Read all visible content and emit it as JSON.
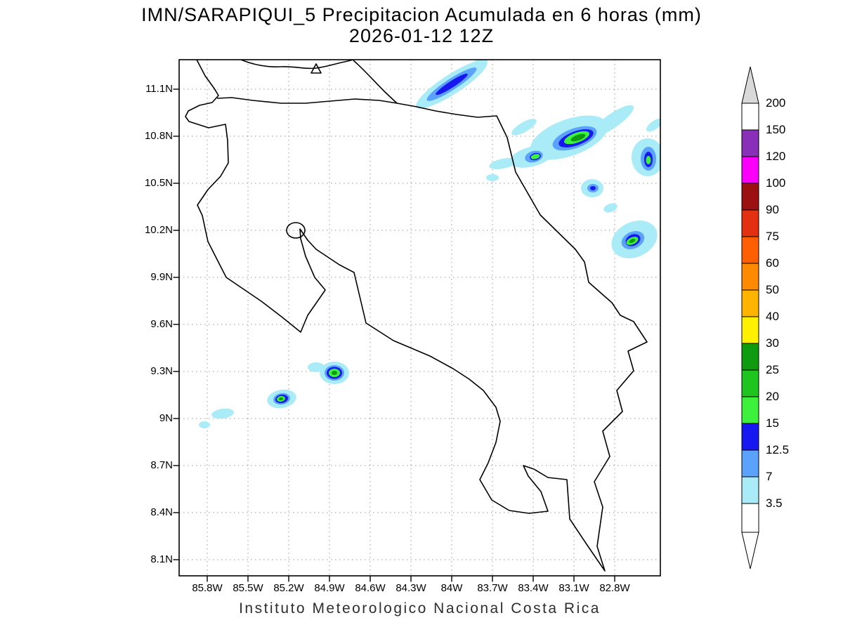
{
  "title": {
    "line1": "IMN/SARAPIQUI_5 Precipitacion Acumulada en 6 horas (mm)",
    "line2": "2026-01-12 12Z"
  },
  "footer": "Instituto Meteorologico Nacional Costa Rica",
  "map": {
    "y_axis_labels": [
      "11.1N",
      "10.8N",
      "10.5N",
      "10.2N",
      "9.9N",
      "9.6N",
      "9.3N",
      "9N",
      "8.7N",
      "8.4N",
      "8.1N"
    ],
    "x_axis_labels": [
      "85.8W",
      "85.5W",
      "85.2W",
      "84.9W",
      "84.6W",
      "84.3W",
      "84W",
      "83.7W",
      "83.4W",
      "83.1W",
      "82.8W"
    ]
  },
  "colorbar": {
    "unit": "mm",
    "labels": [
      "200",
      "150",
      "120",
      "100",
      "90",
      "75",
      "60",
      "50",
      "40",
      "30",
      "25",
      "20",
      "15",
      "12.5",
      "7",
      "3.5"
    ],
    "segment_colors": [
      "#ffffff",
      "#8a2fb8",
      "#fa00fa",
      "#9b1010",
      "#e33010",
      "#ff5f00",
      "#ff8a00",
      "#ffb400",
      "#fff000",
      "#0f9b0f",
      "#1fc41f",
      "#3cf03c",
      "#1717f0",
      "#5aa2fb",
      "#a9ecf7",
      "#ffffff"
    ],
    "arrow_top_color": "#d9d9d9",
    "arrow_bottom_color": "#ffffff"
  },
  "palette": {
    "grid": "#9a9a9a",
    "coastline": "#000000",
    "shade_3_5": "#a9ecf7",
    "shade_7": "#5aa2fb",
    "shade_12_5": "#1717f0",
    "shade_15": "#3cf03c",
    "shade_20": "#17b517",
    "shade_25": "#0f9b0f"
  }
}
